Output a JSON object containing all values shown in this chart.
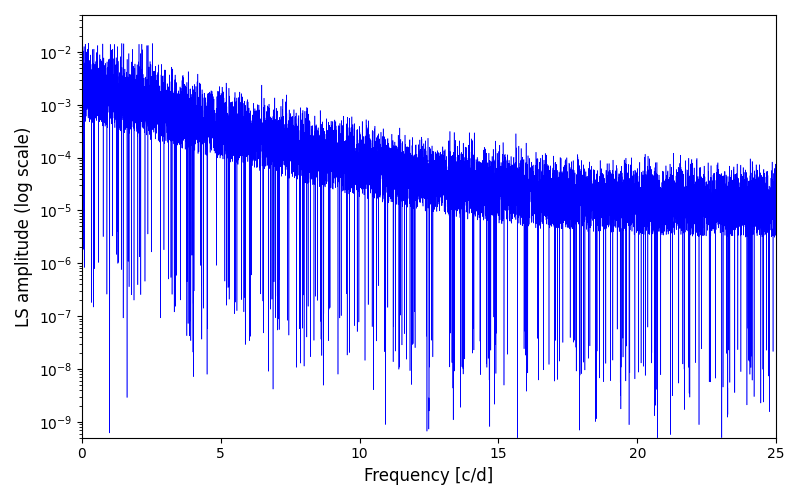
{
  "xlabel": "Frequency [c/d]",
  "ylabel": "LS amplitude (log scale)",
  "title": "",
  "line_color": "#0000ff",
  "line_width": 0.4,
  "xmin": 0,
  "xmax": 25,
  "ymin": 5e-10,
  "ymax": 0.05,
  "figsize": [
    8.0,
    5.0
  ],
  "dpi": 100,
  "seed": 7,
  "n_points": 10000,
  "background_color": "#ffffff"
}
